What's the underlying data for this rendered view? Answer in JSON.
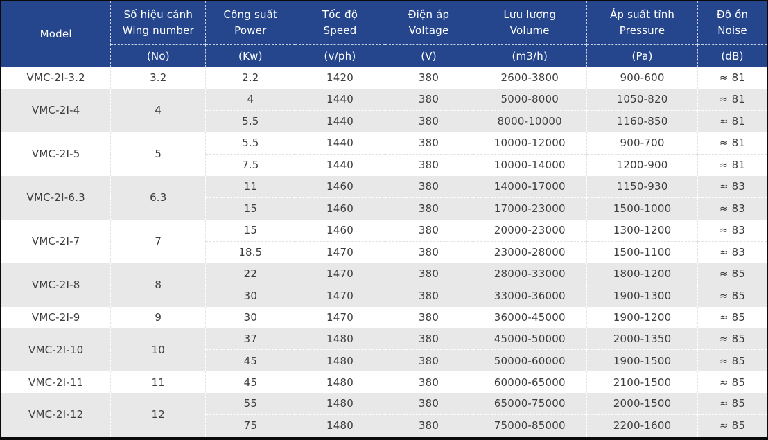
{
  "colors": {
    "header_bg": "#25458c",
    "header_text": "#ffffff",
    "row_alt_bg": "#e8e8e9",
    "row_bg": "#ffffff",
    "body_text": "#3d3d3d",
    "frame": "#0a0a0a"
  },
  "table": {
    "header": {
      "model_label": "Model",
      "columns": [
        {
          "vi": "Số hiệu cánh",
          "en": "Wing number",
          "unit": "(No)"
        },
        {
          "vi": "Công suất",
          "en": "Power",
          "unit": "(Kw)"
        },
        {
          "vi": "Tốc độ",
          "en": "Speed",
          "unit": "(v/ph)"
        },
        {
          "vi": "Điện áp",
          "en": "Voltage",
          "unit": "(V)"
        },
        {
          "vi": "Lưu lượng",
          "en": "Volume",
          "unit": "(m3/h)"
        },
        {
          "vi": "Áp suất tĩnh",
          "en": "Pressure",
          "unit": "(Pa)"
        },
        {
          "vi": "Độ ồn",
          "en": "Noise",
          "unit": "(dB)"
        }
      ]
    },
    "groups": [
      {
        "model": "VMC-2I-3.2",
        "wing_number": "3.2",
        "rows": [
          [
            "2.2",
            "1420",
            "380",
            "2600-3800",
            "900-600",
            "≈ 81"
          ]
        ]
      },
      {
        "model": "VMC-2I-4",
        "wing_number": "4",
        "rows": [
          [
            "4",
            "1440",
            "380",
            "5000-8000",
            "1050-820",
            "≈ 81"
          ],
          [
            "5.5",
            "1440",
            "380",
            "8000-10000",
            "1160-850",
            "≈ 81"
          ]
        ]
      },
      {
        "model": "VMC-2I-5",
        "wing_number": "5",
        "rows": [
          [
            "5.5",
            "1440",
            "380",
            "10000-12000",
            "900-700",
            "≈ 81"
          ],
          [
            "7.5",
            "1440",
            "380",
            "10000-14000",
            "1200-900",
            "≈ 81"
          ]
        ]
      },
      {
        "model": "VMC-2I-6.3",
        "wing_number": "6.3",
        "rows": [
          [
            "11",
            "1460",
            "380",
            "14000-17000",
            "1150-930",
            "≈ 83"
          ],
          [
            "15",
            "1460",
            "380",
            "17000-23000",
            "1500-1000",
            "≈ 83"
          ]
        ]
      },
      {
        "model": "VMC-2I-7",
        "wing_number": "7",
        "rows": [
          [
            "15",
            "1460",
            "380",
            "20000-23000",
            "1300-1200",
            "≈ 83"
          ],
          [
            "18.5",
            "1470",
            "380",
            "23000-28000",
            "1500-1100",
            "≈ 83"
          ]
        ]
      },
      {
        "model": "VMC-2I-8",
        "wing_number": "8",
        "rows": [
          [
            "22",
            "1470",
            "380",
            "28000-33000",
            "1800-1200",
            "≈ 85"
          ],
          [
            "30",
            "1470",
            "380",
            "33000-36000",
            "1900-1300",
            "≈ 85"
          ]
        ]
      },
      {
        "model": "VMC-2I-9",
        "wing_number": "9",
        "rows": [
          [
            "30",
            "1470",
            "380",
            "36000-45000",
            "1900-1200",
            "≈ 85"
          ]
        ]
      },
      {
        "model": "VMC-2I-10",
        "wing_number": "10",
        "rows": [
          [
            "37",
            "1480",
            "380",
            "45000-50000",
            "2000-1350",
            "≈ 85"
          ],
          [
            "45",
            "1480",
            "380",
            "50000-60000",
            "1900-1500",
            "≈ 85"
          ]
        ]
      },
      {
        "model": "VMC-2I-11",
        "wing_number": "11",
        "rows": [
          [
            "45",
            "1480",
            "380",
            "60000-65000",
            "2100-1500",
            "≈ 85"
          ]
        ]
      },
      {
        "model": "VMC-2I-12",
        "wing_number": "12",
        "rows": [
          [
            "55",
            "1480",
            "380",
            "65000-75000",
            "2000-1500",
            "≈ 85"
          ],
          [
            "75",
            "1480",
            "380",
            "75000-85000",
            "2200-1600",
            "≈ 85"
          ]
        ]
      }
    ],
    "body_column_keys": [
      "power",
      "speed",
      "voltage",
      "volume",
      "pressure",
      "noise"
    ]
  }
}
